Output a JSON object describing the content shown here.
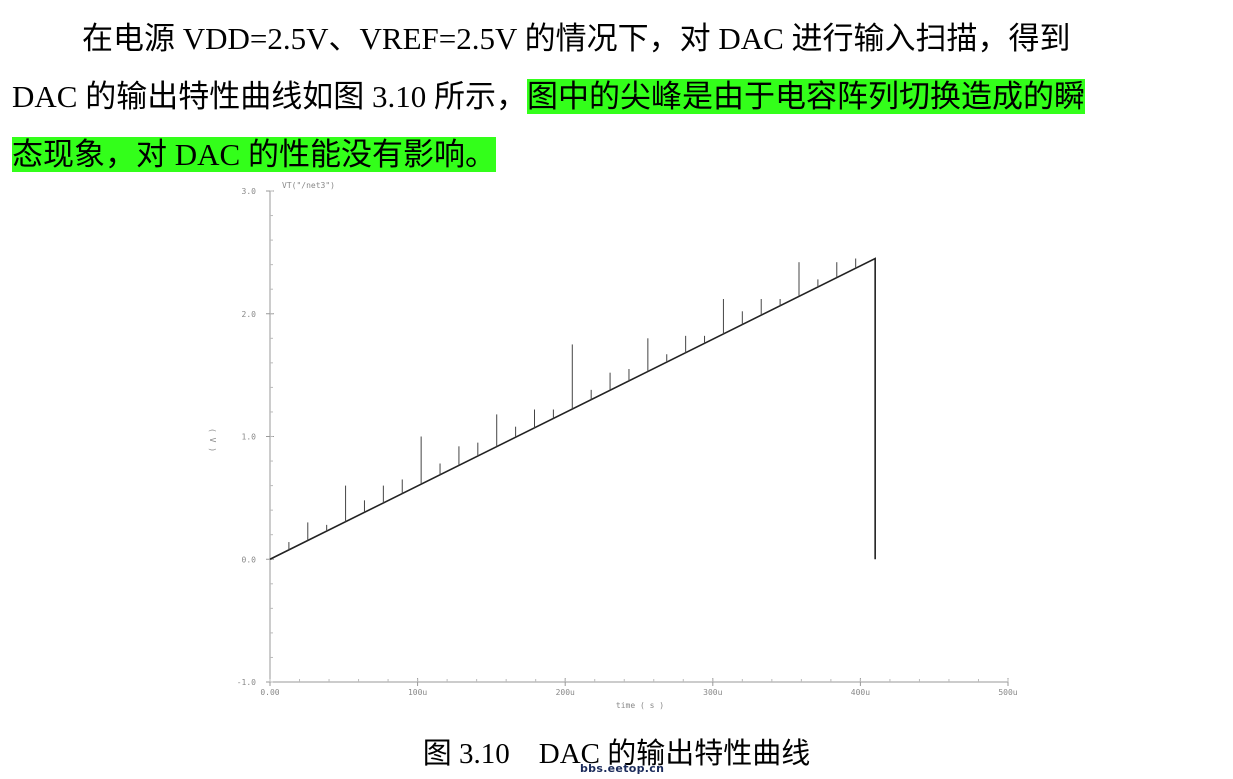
{
  "paragraph": {
    "line1": "在电源 VDD=2.5V、VREF=2.5V 的情况下，对 DAC 进行输入扫描，得到",
    "line2_plain": "DAC 的输出特性曲线如图 3.10 所示，",
    "line2_highlight": "图中的尖峰是由于电容阵列切换造成的瞬",
    "line3_highlight": "态现象，对 DAC 的性能没有影响。"
  },
  "figure": {
    "caption": "图 3.10　DAC 的输出特性曲线",
    "watermark": "bbs.eetop.cn",
    "highlight_color": "#33ff1a"
  },
  "chart_data": {
    "type": "line",
    "title": "",
    "legend": "VT(\"/net3\")",
    "xlabel": "time ( s )",
    "ylabel": "( V )",
    "xlim": [
      0,
      500
    ],
    "ylim": [
      -1.0,
      3.0
    ],
    "x_ticks": [
      "0.00",
      "100u",
      "200u",
      "300u",
      "400u",
      "500u"
    ],
    "y_ticks": [
      "3.0",
      "2.0",
      "1.0",
      "0.0",
      "-1.0"
    ],
    "series": [
      {
        "name": "VT(\"/net3\")",
        "x": [
          0,
          410,
          410
        ],
        "y": [
          0.0,
          2.45,
          0.0
        ]
      }
    ],
    "spikes": [
      {
        "x": 12.8,
        "y": 0.14
      },
      {
        "x": 25.6,
        "y": 0.3
      },
      {
        "x": 38.4,
        "y": 0.28
      },
      {
        "x": 51.2,
        "y": 0.6
      },
      {
        "x": 64.0,
        "y": 0.48
      },
      {
        "x": 76.8,
        "y": 0.6
      },
      {
        "x": 89.6,
        "y": 0.65
      },
      {
        "x": 102.4,
        "y": 1.0
      },
      {
        "x": 115.2,
        "y": 0.78
      },
      {
        "x": 128.0,
        "y": 0.92
      },
      {
        "x": 140.8,
        "y": 0.95
      },
      {
        "x": 153.6,
        "y": 1.18
      },
      {
        "x": 166.4,
        "y": 1.08
      },
      {
        "x": 179.2,
        "y": 1.22
      },
      {
        "x": 192.0,
        "y": 1.22
      },
      {
        "x": 204.8,
        "y": 1.75
      },
      {
        "x": 217.6,
        "y": 1.38
      },
      {
        "x": 230.4,
        "y": 1.52
      },
      {
        "x": 243.2,
        "y": 1.55
      },
      {
        "x": 256.0,
        "y": 1.8
      },
      {
        "x": 268.8,
        "y": 1.67
      },
      {
        "x": 281.6,
        "y": 1.82
      },
      {
        "x": 294.4,
        "y": 1.82
      },
      {
        "x": 307.2,
        "y": 2.12
      },
      {
        "x": 320.0,
        "y": 2.02
      },
      {
        "x": 332.8,
        "y": 2.12
      },
      {
        "x": 345.6,
        "y": 2.12
      },
      {
        "x": 358.4,
        "y": 2.42
      },
      {
        "x": 371.2,
        "y": 2.28
      },
      {
        "x": 384.0,
        "y": 2.42
      },
      {
        "x": 396.8,
        "y": 2.45
      }
    ]
  }
}
